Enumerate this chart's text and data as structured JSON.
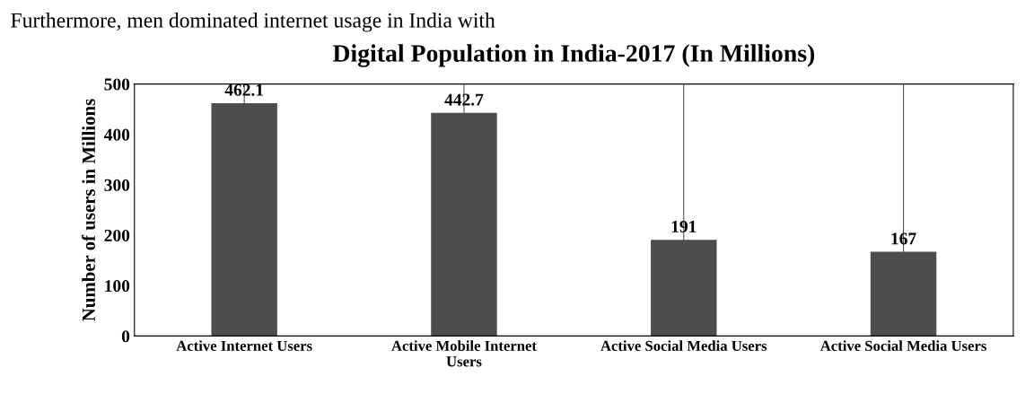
{
  "chart_data": {
    "type": "bar",
    "title": "Digital Population in India-2017 (In Millions)",
    "ylabel": "Number of users in Millions",
    "categories": [
      "Active Internet Users",
      "Active Mobile Internet\nUsers",
      "Active Social Media Users",
      "Active Social Media Users"
    ],
    "values": [
      462.1,
      442.7,
      191,
      167
    ],
    "color": "#4d4d4d",
    "ylim": [
      0,
      500
    ],
    "yticks": [
      0,
      100,
      200,
      300,
      400,
      500
    ],
    "grid": "x",
    "data_labels": true,
    "value_labels": [
      "462.1",
      "442.7",
      "191",
      "167"
    ],
    "annotations": [
      "Furthermore, men dominated internet usage in India with"
    ]
  }
}
